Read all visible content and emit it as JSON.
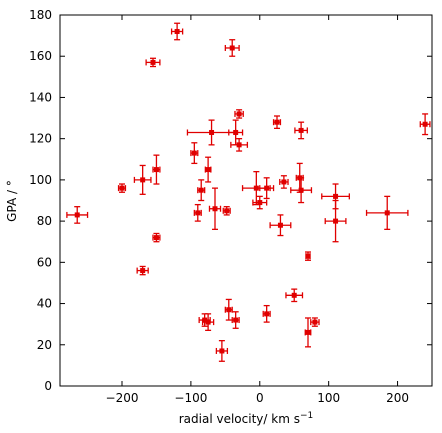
{
  "chart_data": {
    "type": "scatter",
    "title": "",
    "xlabel": "radial velocity/ km s",
    "xlabel_superscript": "−1",
    "ylabel": "GPA / °",
    "xlim": [
      -290,
      250
    ],
    "ylim": [
      0,
      180
    ],
    "xticks": [
      -200,
      -100,
      0,
      100,
      200
    ],
    "xtick_labels": [
      "−200",
      "−100",
      "0",
      "100",
      "200"
    ],
    "yticks": [
      0,
      20,
      40,
      60,
      80,
      100,
      120,
      140,
      160,
      180
    ],
    "ytick_labels": [
      "0",
      "20",
      "40",
      "60",
      "80",
      "100",
      "120",
      "140",
      "160",
      "180"
    ],
    "grid": false,
    "marker_color": "#e00000",
    "points": [
      {
        "x": -120,
        "y": 172,
        "xerr": 8,
        "yerr": 4
      },
      {
        "x": -40,
        "y": 164,
        "xerr": 10,
        "yerr": 4
      },
      {
        "x": -155,
        "y": 157,
        "xerr": 10,
        "yerr": 2
      },
      {
        "x": -30,
        "y": 132,
        "xerr": 6,
        "yerr": 2
      },
      {
        "x": 25,
        "y": 128,
        "xerr": 5,
        "yerr": 3
      },
      {
        "x": 240,
        "y": 127,
        "xerr": 7,
        "yerr": 5
      },
      {
        "x": 60,
        "y": 124,
        "xerr": 9,
        "yerr": 4
      },
      {
        "x": -70,
        "y": 123,
        "xerr": 35,
        "yerr": 6
      },
      {
        "x": -35,
        "y": 123,
        "xerr": 10,
        "yerr": 6
      },
      {
        "x": -30,
        "y": 117,
        "xerr": 12,
        "yerr": 3
      },
      {
        "x": -95,
        "y": 113,
        "xerr": 5,
        "yerr": 5
      },
      {
        "x": -75,
        "y": 105,
        "xerr": 4,
        "yerr": 6
      },
      {
        "x": -150,
        "y": 105,
        "xerr": 5,
        "yerr": 7
      },
      {
        "x": -170,
        "y": 100,
        "xerr": 12,
        "yerr": 7
      },
      {
        "x": 58,
        "y": 101,
        "xerr": 5,
        "yerr": 7
      },
      {
        "x": 35,
        "y": 99,
        "xerr": 6,
        "yerr": 3
      },
      {
        "x": -200,
        "y": 96,
        "xerr": 5,
        "yerr": 2
      },
      {
        "x": -5,
        "y": 96,
        "xerr": 20,
        "yerr": 8
      },
      {
        "x": 10,
        "y": 96,
        "xerr": 10,
        "yerr": 5
      },
      {
        "x": -85,
        "y": 95,
        "xerr": 5,
        "yerr": 5
      },
      {
        "x": 60,
        "y": 95,
        "xerr": 15,
        "yerr": 6
      },
      {
        "x": 110,
        "y": 92,
        "xerr": 20,
        "yerr": 6
      },
      {
        "x": 0,
        "y": 89,
        "xerr": 10,
        "yerr": 3
      },
      {
        "x": -65,
        "y": 86,
        "xerr": 8,
        "yerr": 10
      },
      {
        "x": -48,
        "y": 85,
        "xerr": 5,
        "yerr": 2
      },
      {
        "x": -90,
        "y": 84,
        "xerr": 5,
        "yerr": 4
      },
      {
        "x": 185,
        "y": 84,
        "xerr": 30,
        "yerr": 8
      },
      {
        "x": -265,
        "y": 83,
        "xerr": 15,
        "yerr": 4
      },
      {
        "x": 110,
        "y": 80,
        "xerr": 15,
        "yerr": 10
      },
      {
        "x": 30,
        "y": 78,
        "xerr": 15,
        "yerr": 5
      },
      {
        "x": -150,
        "y": 72,
        "xerr": 5,
        "yerr": 2
      },
      {
        "x": 70,
        "y": 63,
        "xerr": 3,
        "yerr": 2
      },
      {
        "x": -170,
        "y": 56,
        "xerr": 8,
        "yerr": 2
      },
      {
        "x": 50,
        "y": 44,
        "xerr": 12,
        "yerr": 3
      },
      {
        "x": -45,
        "y": 37,
        "xerr": 5,
        "yerr": 5
      },
      {
        "x": 10,
        "y": 35,
        "xerr": 5,
        "yerr": 4
      },
      {
        "x": -80,
        "y": 32,
        "xerr": 8,
        "yerr": 3
      },
      {
        "x": -35,
        "y": 32,
        "xerr": 5,
        "yerr": 4
      },
      {
        "x": -75,
        "y": 31,
        "xerr": 8,
        "yerr": 4
      },
      {
        "x": 80,
        "y": 31,
        "xerr": 6,
        "yerr": 2
      },
      {
        "x": 70,
        "y": 26,
        "xerr": 4,
        "yerr": 7
      },
      {
        "x": -55,
        "y": 17,
        "xerr": 8,
        "yerr": 5
      }
    ]
  }
}
